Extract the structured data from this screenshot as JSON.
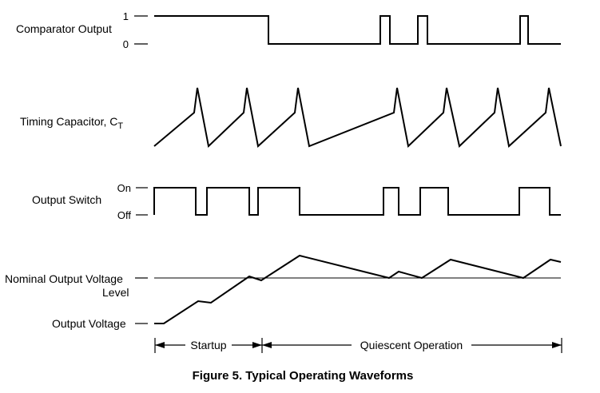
{
  "signals": {
    "comparator": {
      "label": "Comparator Output",
      "high": "1",
      "low": "0"
    },
    "timing": {
      "label": "Timing Capacitor, C",
      "subscript": "T"
    },
    "switch": {
      "label": "Output Switch",
      "on": "On",
      "off": "Off"
    },
    "voltage": {
      "nominal_line1": "Nominal Output Voltage",
      "nominal_line2": "Level",
      "output": "Output Voltage"
    }
  },
  "phases": {
    "startup": "Startup",
    "quiescent": "Quiescent Operation"
  },
  "caption": "Figure 5. Typical Operating Waveforms"
}
